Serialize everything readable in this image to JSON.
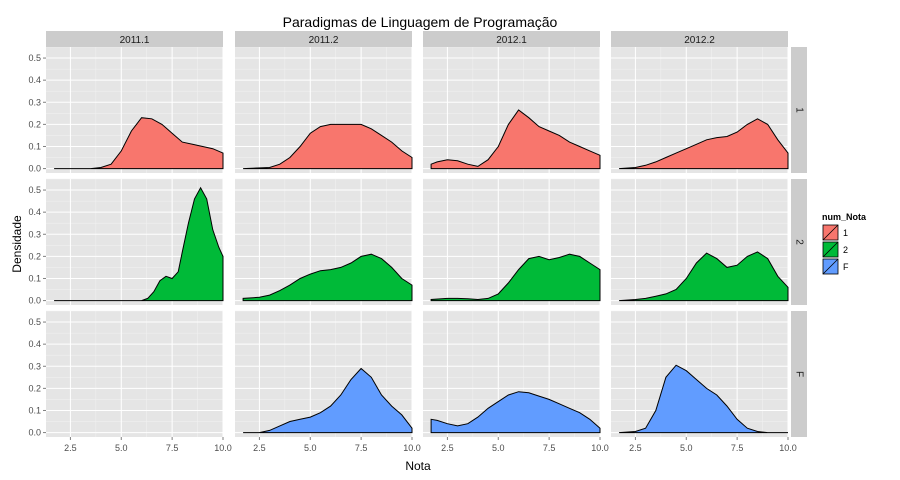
{
  "chart_data": {
    "type": "area",
    "title": "Paradigmas de Linguagem de Programação",
    "xlabel": "Nota",
    "ylabel": "Densidade",
    "xlim": [
      1.3,
      10.0
    ],
    "ylim": [
      -0.02,
      0.55
    ],
    "x_ticks": [
      "2.5",
      "5.0",
      "7.5",
      "10.0"
    ],
    "x_tick_values": [
      2.5,
      5.0,
      7.5,
      10.0
    ],
    "y_ticks": [
      "0.0",
      "0.1",
      "0.2",
      "0.3",
      "0.4",
      "0.5"
    ],
    "y_tick_values": [
      0.0,
      0.1,
      0.2,
      0.3,
      0.4,
      0.5
    ],
    "columns": [
      "2011.1",
      "2011.2",
      "2012.1",
      "2012.2"
    ],
    "rows": [
      "1",
      "2",
      "F"
    ],
    "grid": true,
    "legend": {
      "title": "num_Nota",
      "position": "right",
      "entries": [
        {
          "label": "1",
          "color": "#F8766D"
        },
        {
          "label": "2",
          "color": "#00BA38"
        },
        {
          "label": "F",
          "color": "#619CFF"
        }
      ]
    },
    "panels": [
      {
        "row": "1",
        "col": "2011.1",
        "points": [
          [
            1.7,
            0.0
          ],
          [
            3.5,
            0.0
          ],
          [
            4.0,
            0.005
          ],
          [
            4.5,
            0.02
          ],
          [
            5.0,
            0.08
          ],
          [
            5.5,
            0.17
          ],
          [
            6.0,
            0.23
          ],
          [
            6.5,
            0.225
          ],
          [
            7.0,
            0.2
          ],
          [
            7.5,
            0.16
          ],
          [
            8.0,
            0.12
          ],
          [
            8.5,
            0.11
          ],
          [
            9.0,
            0.1
          ],
          [
            9.5,
            0.09
          ],
          [
            10.0,
            0.07
          ]
        ]
      },
      {
        "row": "1",
        "col": "2011.2",
        "points": [
          [
            1.7,
            0.0
          ],
          [
            3.0,
            0.005
          ],
          [
            3.5,
            0.02
          ],
          [
            4.0,
            0.05
          ],
          [
            4.5,
            0.1
          ],
          [
            5.0,
            0.16
          ],
          [
            5.5,
            0.19
          ],
          [
            6.0,
            0.2
          ],
          [
            6.5,
            0.2
          ],
          [
            7.0,
            0.2
          ],
          [
            7.5,
            0.2
          ],
          [
            8.0,
            0.18
          ],
          [
            8.5,
            0.15
          ],
          [
            9.0,
            0.12
          ],
          [
            9.5,
            0.08
          ],
          [
            10.0,
            0.05
          ]
        ]
      },
      {
        "row": "1",
        "col": "2012.1",
        "points": [
          [
            1.7,
            0.02
          ],
          [
            2.0,
            0.03
          ],
          [
            2.5,
            0.04
          ],
          [
            3.0,
            0.035
          ],
          [
            3.5,
            0.02
          ],
          [
            4.0,
            0.01
          ],
          [
            4.5,
            0.04
          ],
          [
            5.0,
            0.1
          ],
          [
            5.5,
            0.2
          ],
          [
            6.0,
            0.265
          ],
          [
            6.5,
            0.23
          ],
          [
            7.0,
            0.19
          ],
          [
            7.5,
            0.17
          ],
          [
            8.0,
            0.15
          ],
          [
            8.5,
            0.12
          ],
          [
            9.0,
            0.1
          ],
          [
            9.5,
            0.08
          ],
          [
            10.0,
            0.06
          ]
        ]
      },
      {
        "row": "1",
        "col": "2012.2",
        "points": [
          [
            1.7,
            0.0
          ],
          [
            2.5,
            0.005
          ],
          [
            3.0,
            0.015
          ],
          [
            3.5,
            0.03
          ],
          [
            4.0,
            0.05
          ],
          [
            4.5,
            0.07
          ],
          [
            5.0,
            0.09
          ],
          [
            5.5,
            0.11
          ],
          [
            6.0,
            0.13
          ],
          [
            6.5,
            0.14
          ],
          [
            7.0,
            0.145
          ],
          [
            7.5,
            0.165
          ],
          [
            8.0,
            0.2
          ],
          [
            8.5,
            0.225
          ],
          [
            9.0,
            0.2
          ],
          [
            9.5,
            0.13
          ],
          [
            10.0,
            0.07
          ]
        ]
      },
      {
        "row": "2",
        "col": "2011.1",
        "points": [
          [
            1.7,
            0.0
          ],
          [
            6.0,
            0.0
          ],
          [
            6.3,
            0.01
          ],
          [
            6.6,
            0.04
          ],
          [
            6.9,
            0.09
          ],
          [
            7.2,
            0.11
          ],
          [
            7.5,
            0.1
          ],
          [
            7.8,
            0.13
          ],
          [
            8.0,
            0.22
          ],
          [
            8.3,
            0.35
          ],
          [
            8.6,
            0.46
          ],
          [
            8.9,
            0.51
          ],
          [
            9.2,
            0.46
          ],
          [
            9.5,
            0.32
          ],
          [
            9.8,
            0.24
          ],
          [
            10.0,
            0.2
          ]
        ]
      },
      {
        "row": "2",
        "col": "2011.2",
        "points": [
          [
            1.7,
            0.01
          ],
          [
            2.5,
            0.015
          ],
          [
            3.0,
            0.025
          ],
          [
            3.5,
            0.045
          ],
          [
            4.0,
            0.07
          ],
          [
            4.5,
            0.1
          ],
          [
            5.0,
            0.12
          ],
          [
            5.5,
            0.135
          ],
          [
            6.0,
            0.14
          ],
          [
            6.5,
            0.15
          ],
          [
            7.0,
            0.17
          ],
          [
            7.5,
            0.2
          ],
          [
            8.0,
            0.21
          ],
          [
            8.5,
            0.19
          ],
          [
            9.0,
            0.15
          ],
          [
            9.5,
            0.1
          ],
          [
            10.0,
            0.07
          ]
        ]
      },
      {
        "row": "2",
        "col": "2012.1",
        "points": [
          [
            1.7,
            0.005
          ],
          [
            2.5,
            0.01
          ],
          [
            3.0,
            0.01
          ],
          [
            3.5,
            0.008
          ],
          [
            4.0,
            0.005
          ],
          [
            4.5,
            0.01
          ],
          [
            5.0,
            0.03
          ],
          [
            5.5,
            0.08
          ],
          [
            6.0,
            0.14
          ],
          [
            6.5,
            0.19
          ],
          [
            7.0,
            0.2
          ],
          [
            7.5,
            0.185
          ],
          [
            8.0,
            0.195
          ],
          [
            8.5,
            0.21
          ],
          [
            9.0,
            0.2
          ],
          [
            9.5,
            0.17
          ],
          [
            10.0,
            0.14
          ]
        ]
      },
      {
        "row": "2",
        "col": "2012.2",
        "points": [
          [
            1.7,
            0.0
          ],
          [
            2.5,
            0.005
          ],
          [
            3.0,
            0.01
          ],
          [
            3.5,
            0.02
          ],
          [
            4.0,
            0.03
          ],
          [
            4.5,
            0.05
          ],
          [
            5.0,
            0.1
          ],
          [
            5.5,
            0.17
          ],
          [
            6.0,
            0.215
          ],
          [
            6.5,
            0.19
          ],
          [
            7.0,
            0.15
          ],
          [
            7.5,
            0.16
          ],
          [
            8.0,
            0.2
          ],
          [
            8.5,
            0.22
          ],
          [
            9.0,
            0.19
          ],
          [
            9.5,
            0.11
          ],
          [
            10.0,
            0.06
          ]
        ]
      },
      {
        "row": "F",
        "col": "2011.2",
        "points": [
          [
            1.7,
            0.0
          ],
          [
            2.5,
            0.0
          ],
          [
            3.0,
            0.01
          ],
          [
            3.5,
            0.03
          ],
          [
            4.0,
            0.05
          ],
          [
            4.5,
            0.06
          ],
          [
            5.0,
            0.07
          ],
          [
            5.5,
            0.09
          ],
          [
            6.0,
            0.12
          ],
          [
            6.5,
            0.17
          ],
          [
            7.0,
            0.24
          ],
          [
            7.5,
            0.29
          ],
          [
            8.0,
            0.25
          ],
          [
            8.5,
            0.17
          ],
          [
            9.0,
            0.12
          ],
          [
            9.5,
            0.08
          ],
          [
            10.0,
            0.02
          ]
        ]
      },
      {
        "row": "F",
        "col": "2012.1",
        "points": [
          [
            1.7,
            0.06
          ],
          [
            2.0,
            0.055
          ],
          [
            2.5,
            0.04
          ],
          [
            3.0,
            0.03
          ],
          [
            3.5,
            0.04
          ],
          [
            4.0,
            0.07
          ],
          [
            4.5,
            0.11
          ],
          [
            5.0,
            0.14
          ],
          [
            5.5,
            0.17
          ],
          [
            6.0,
            0.185
          ],
          [
            6.5,
            0.18
          ],
          [
            7.0,
            0.165
          ],
          [
            7.5,
            0.15
          ],
          [
            8.0,
            0.13
          ],
          [
            8.5,
            0.11
          ],
          [
            9.0,
            0.09
          ],
          [
            9.5,
            0.06
          ],
          [
            10.0,
            0.02
          ]
        ]
      },
      {
        "row": "F",
        "col": "2012.2",
        "points": [
          [
            1.7,
            0.0
          ],
          [
            2.5,
            0.005
          ],
          [
            3.0,
            0.02
          ],
          [
            3.5,
            0.1
          ],
          [
            4.0,
            0.25
          ],
          [
            4.5,
            0.305
          ],
          [
            5.0,
            0.28
          ],
          [
            5.5,
            0.24
          ],
          [
            6.0,
            0.2
          ],
          [
            6.5,
            0.17
          ],
          [
            7.0,
            0.12
          ],
          [
            7.5,
            0.06
          ],
          [
            8.0,
            0.02
          ],
          [
            8.5,
            0.005
          ],
          [
            9.0,
            0.0
          ],
          [
            10.0,
            0.0
          ]
        ]
      }
    ]
  }
}
